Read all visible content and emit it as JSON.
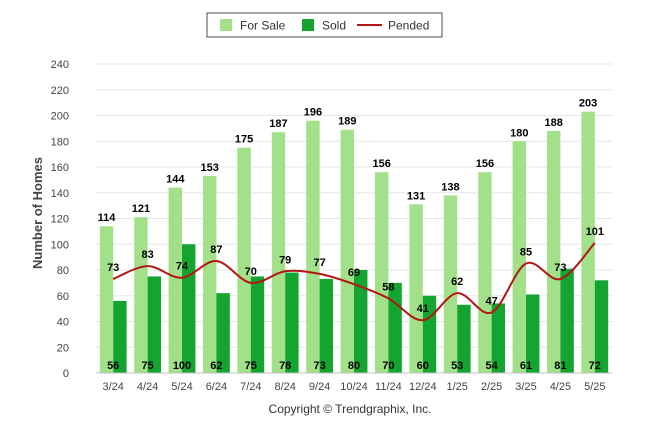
{
  "chart_data": {
    "type": "bar",
    "ylabel": "Number of Homes",
    "ylim": [
      0,
      240
    ],
    "yticks": [
      0,
      20,
      40,
      60,
      80,
      100,
      120,
      140,
      160,
      180,
      200,
      220,
      240
    ],
    "grid": true,
    "legend": "top-center",
    "categories": [
      "3/24",
      "4/24",
      "5/24",
      "6/24",
      "7/24",
      "8/24",
      "9/24",
      "10/24",
      "11/24",
      "12/24",
      "1/25",
      "2/25",
      "3/25",
      "4/25",
      "5/25"
    ],
    "series": [
      {
        "name": "For Sale",
        "type": "bar",
        "color": "#a3e08a",
        "values": [
          114,
          121,
          144,
          153,
          175,
          187,
          196,
          189,
          156,
          131,
          138,
          156,
          180,
          188,
          203
        ]
      },
      {
        "name": "Sold",
        "type": "bar",
        "color": "#14a531",
        "values": [
          56,
          75,
          100,
          62,
          75,
          78,
          73,
          80,
          70,
          60,
          53,
          54,
          61,
          81,
          72
        ]
      },
      {
        "name": "Pended",
        "type": "line",
        "color": "#b31515",
        "values": [
          73,
          83,
          74,
          87,
          70,
          79,
          77,
          69,
          58,
          41,
          62,
          47,
          85,
          73,
          101
        ]
      }
    ],
    "footer": "Copyright © Trendgraphix, Inc."
  }
}
